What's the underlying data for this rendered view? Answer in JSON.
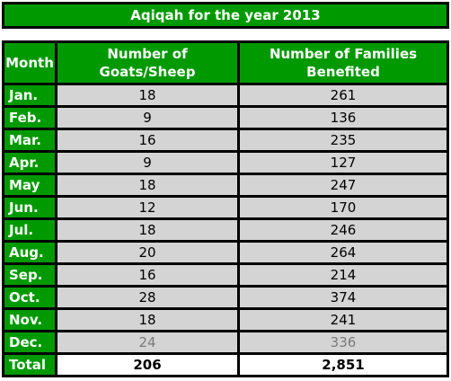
{
  "title": "Aqiqah for the year 2013",
  "headers": {
    "month": "Month",
    "goats_line1": "Number of",
    "goats_line2": "Goats/Sheep",
    "families_line1": "Number of Families",
    "families_line2": "Benefited"
  },
  "rows": [
    {
      "month": "Jan.",
      "goats": "18",
      "families": "261"
    },
    {
      "month": "Feb.",
      "goats": "9",
      "families": "136"
    },
    {
      "month": "Mar.",
      "goats": "16",
      "families": "235"
    },
    {
      "month": "Apr.",
      "goats": "9",
      "families": "127"
    },
    {
      "month": "May",
      "goats": "18",
      "families": "247"
    },
    {
      "month": "Jun.",
      "goats": "12",
      "families": "170"
    },
    {
      "month": "Jul.",
      "goats": "18",
      "families": "246"
    },
    {
      "month": "Aug.",
      "goats": "20",
      "families": "264"
    },
    {
      "month": "Sep.",
      "goats": "16",
      "families": "214"
    },
    {
      "month": "Oct.",
      "goats": "28",
      "families": "374"
    },
    {
      "month": "Nov.",
      "goats": "18",
      "families": "241"
    },
    {
      "month": "Dec.",
      "goats": "24",
      "families": "336"
    }
  ],
  "total": {
    "label": "Total",
    "goats": "206",
    "families": "2,851"
  },
  "colors": {
    "header_green": "#009a00",
    "cell_grey": "#d4d4d4",
    "border": "#000000",
    "muted_text": "#7a7a7a"
  }
}
